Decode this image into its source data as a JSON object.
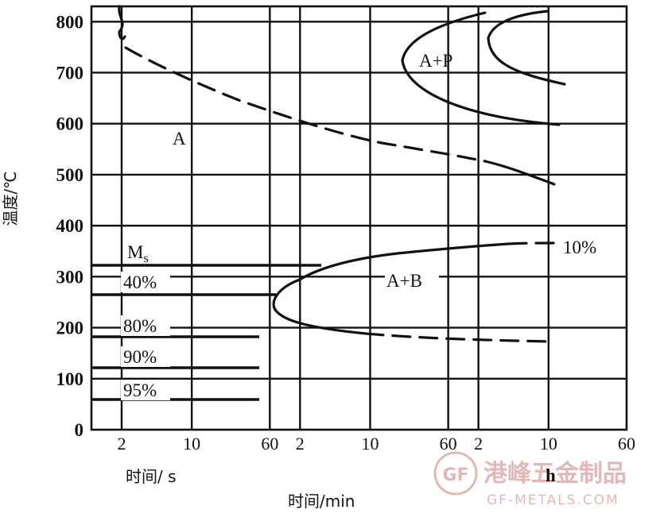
{
  "chart_data": {
    "type": "line",
    "ylabel": "温度/℃",
    "y_ticks": [
      "0",
      "100",
      "200",
      "300",
      "400",
      "500",
      "600",
      "700",
      "800"
    ],
    "ylim": [
      0,
      830
    ],
    "x_segments": [
      {
        "unit": "s",
        "ticks": [
          "2",
          "10",
          "60"
        ]
      },
      {
        "unit": "min",
        "ticks": [
          "2",
          "10",
          "60"
        ]
      },
      {
        "unit": "h",
        "ticks": [
          "2",
          "10",
          "60"
        ]
      }
    ],
    "x_label_seconds": "时间/ s",
    "x_label_minutes": "时间/min",
    "x_label_hours": "h",
    "region_labels": [
      "A",
      "A+P",
      "A+B"
    ],
    "ms_label": "M",
    "ms_subscript": "s",
    "percent_labels": [
      "40%",
      "80%",
      "90%",
      "95%",
      "10%"
    ],
    "horizontal_levels": [
      {
        "name": "Ms",
        "temp": 315
      },
      {
        "name": "40%",
        "temp": 262
      },
      {
        "name": "80%",
        "temp": 178
      },
      {
        "name": "90%",
        "temp": 118
      },
      {
        "name": "95%",
        "temp": 58
      }
    ],
    "curves": [
      {
        "name": "pearlite-start",
        "temp_range": [
          470,
          800
        ],
        "nose_temp": 720
      },
      {
        "name": "bainite-start",
        "temp_range": [
          180,
          360
        ],
        "nose_temp": 250
      }
    ],
    "grid": true
  },
  "watermark": {
    "brand": "港峰五金制品",
    "url": "GF-METALS.COM",
    "logo_text": "GF"
  }
}
